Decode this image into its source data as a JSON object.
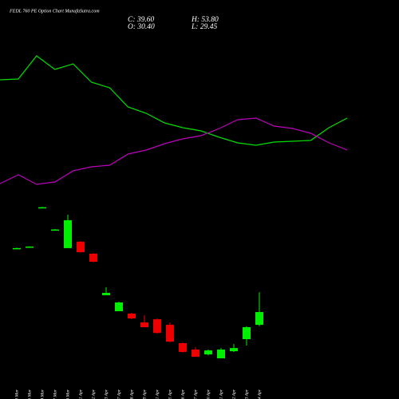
{
  "chart_data": [
    {
      "type": "line",
      "ylim": [
        0,
        100
      ],
      "series": [
        {
          "color": "#00dd00",
          "values": [
            75,
            75.5,
            90,
            81.5,
            85,
            73.5,
            70,
            58,
            54,
            48,
            45,
            43,
            39,
            35.5,
            34,
            36,
            36.5,
            37,
            45,
            51
          ]
        },
        {
          "color": "#bb00bb",
          "values": [
            10,
            15.5,
            9.5,
            11,
            18,
            20.5,
            21.5,
            28.5,
            31,
            35,
            38,
            40,
            44.5,
            50,
            51,
            46,
            44.5,
            41.5,
            35.5,
            31
          ]
        }
      ]
    },
    {
      "type": "candlestick",
      "title": "FEDL 760 PE Option Chart MunafaSutra.com",
      "annotations": [
        "C: 39.60",
        "H: 53.80",
        "O: 30.40",
        "L: 29.45"
      ],
      "ylim": [
        0,
        120
      ],
      "up_color": "#00ee00",
      "down_color": "#ee0000",
      "categories": [
        "19 Mar",
        "20 Mar",
        "24 Mar",
        "27 Mar",
        "28 Mar",
        "01 Apr",
        "02 Apr",
        "03 Apr",
        "07 Apr",
        "08 Apr",
        "09 Apr",
        "11 Apr",
        "15 Apr",
        "16 Apr",
        "17 Apr",
        "20 Apr",
        "21 Apr",
        "22 Apr",
        "23 Apr",
        "24 Apr"
      ],
      "open": [
        85.6,
        86.7,
        115,
        99,
        85.6,
        90.2,
        81.6,
        51.7,
        40.2,
        38.5,
        32.1,
        34.4,
        30.4,
        17.2,
        12.6,
        9.1,
        6.3,
        11.4,
        20.1,
        30.4
      ],
      "high": [
        86,
        87,
        115.3,
        99.3,
        109.7,
        90.8,
        82,
        57.4,
        47,
        39,
        37.3,
        35,
        32.1,
        17.7,
        14.3,
        12.6,
        13.7,
        16.6,
        29.3,
        53.8
      ],
      "low": [
        85.2,
        86.4,
        114.7,
        98.7,
        85.6,
        82.2,
        75.4,
        51.7,
        40.2,
        34.4,
        28.7,
        24,
        17.7,
        10.3,
        7.4,
        8.5,
        6.3,
        10.9,
        15.5,
        29.45
      ],
      "close": [
        85.6,
        86.7,
        115,
        99,
        105.7,
        82.7,
        75.8,
        53.4,
        46.5,
        35,
        28.7,
        24.6,
        18.3,
        10.9,
        7.4,
        12,
        12.6,
        13.7,
        28.7,
        39.6
      ]
    }
  ]
}
